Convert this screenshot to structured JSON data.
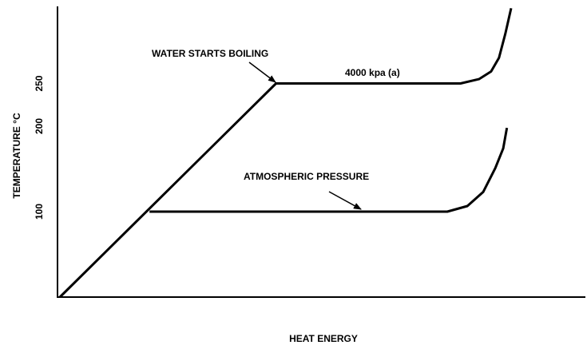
{
  "chart_data": {
    "type": "line",
    "xlabel": "HEAT ENERGY",
    "ylabel": "TEMPERATURE °C",
    "xlim": [
      0,
      100
    ],
    "ylim": [
      0,
      340
    ],
    "yticks": [
      100,
      200,
      250
    ],
    "grid": false,
    "series": [
      {
        "color": "#000000",
        "x": [
          0,
          41,
          76,
          79.5,
          81.8,
          83.3,
          84.5,
          85.6
        ],
        "values": [
          0,
          250,
          250,
          255,
          264,
          280,
          308,
          338
        ]
      },
      {
        "color": "#000000",
        "x": [
          17,
          73.5,
          77.3,
          80.3,
          82.6,
          84.1,
          84.8
        ],
        "values": [
          100,
          100,
          106.5,
          123,
          151,
          174,
          198
        ]
      }
    ],
    "annotations": [
      {
        "text": "WATER STARTS BOILING"
      },
      {
        "text": "4000  kpa (a)"
      },
      {
        "text": "ATMOSPHERIC PRESSURE"
      }
    ]
  }
}
